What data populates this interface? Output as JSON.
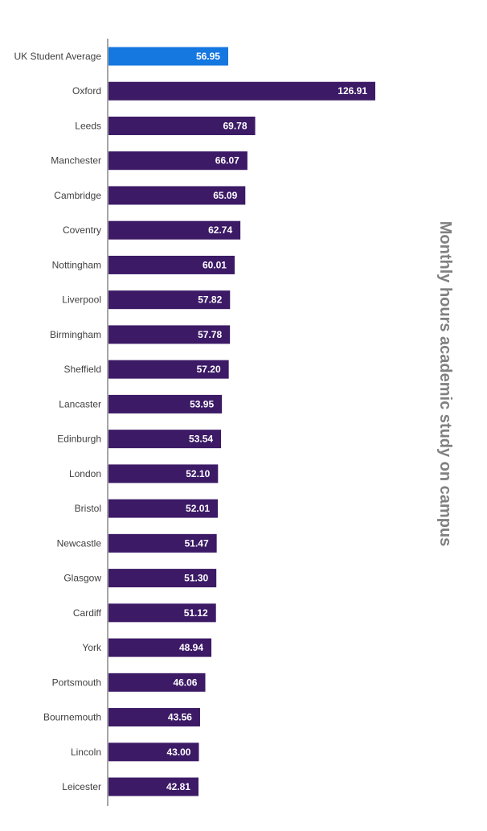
{
  "chart_data": {
    "type": "bar",
    "orientation": "horizontal",
    "categories": [
      "UK Student Average",
      "Oxford",
      "Leeds",
      "Manchester",
      "Cambridge",
      "Coventry",
      "Nottingham",
      "Liverpool",
      "Birmingham",
      "Sheffield",
      "Lancaster",
      "Edinburgh",
      "London",
      "Bristol",
      "Newcastle",
      "Glasgow",
      "Cardiff",
      "York",
      "Portsmouth",
      "Bournemouth",
      "Lincoln",
      "Leicester"
    ],
    "values": [
      56.95,
      126.91,
      69.78,
      66.07,
      65.09,
      62.74,
      60.01,
      57.82,
      57.78,
      57.2,
      53.95,
      53.54,
      52.1,
      52.01,
      51.47,
      51.3,
      51.12,
      48.94,
      46.06,
      43.56,
      43.0,
      42.81
    ],
    "value_labels": [
      "56.95",
      "126.91",
      "69.78",
      "66.07",
      "65.09",
      "62.74",
      "60.01",
      "57.82",
      "57.78",
      "57.20",
      "53.95",
      "53.54",
      "52.10",
      "52.01",
      "51.47",
      "51.30",
      "51.12",
      "48.94",
      "46.06",
      "43.56",
      "43.00",
      "42.81"
    ],
    "highlight_index": 0,
    "colors": {
      "highlight": "#1577E0",
      "bar": "#3C1A66",
      "axis": "#A6A6A6"
    },
    "axis_title": "Monthly hours academic study on campus",
    "xlim": [
      0,
      130
    ],
    "grid": false,
    "legend": "none"
  }
}
